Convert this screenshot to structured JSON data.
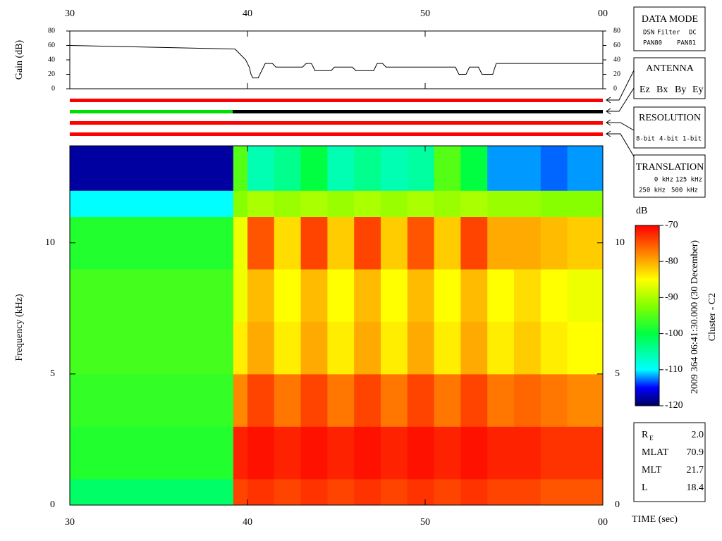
{
  "chart_data": [
    {
      "type": "line",
      "y_label": "Gain (dB)",
      "color": "#000000",
      "x": [
        30,
        39.3,
        39.5,
        39.7,
        39.9,
        40.1,
        40.2,
        40.3,
        40.6,
        40.8,
        41.0,
        41.4,
        41.6,
        43.1,
        43.3,
        43.6,
        43.8,
        44.7,
        44.9,
        45.9,
        46.1,
        47.1,
        47.3,
        47.6,
        47.8,
        51.7,
        51.9,
        52.3,
        52.5,
        53.0,
        53.2,
        53.8,
        54.0,
        60
      ],
      "values": [
        60,
        55,
        50,
        45,
        40,
        30,
        20,
        15,
        15,
        25,
        35,
        35,
        30,
        30,
        35,
        35,
        25,
        25,
        30,
        30,
        25,
        25,
        35,
        35,
        30,
        30,
        20,
        20,
        30,
        30,
        20,
        20,
        35,
        35
      ],
      "xlim": [
        30,
        60
      ],
      "ylim": [
        0,
        80
      ],
      "yticks": [
        0,
        20,
        40,
        60,
        80
      ]
    },
    {
      "type": "heatmap",
      "y_label": "Frequency (kHz)",
      "x_label": "TIME (sec)",
      "colormap": "jet",
      "x_edges": [
        30,
        35,
        39.2,
        40,
        41.5,
        43,
        44.5,
        46,
        47.5,
        49,
        50.5,
        52,
        53.5,
        55,
        56.5,
        58,
        60
      ],
      "y_edges": [
        0,
        1,
        3,
        5,
        7,
        9,
        11,
        12,
        13.7
      ],
      "values": [
        [
          -102,
          -102,
          -74,
          -73,
          -74,
          -73,
          -74,
          -73,
          -74,
          -73,
          -74,
          -73,
          -74,
          -74,
          -75,
          -75
        ],
        [
          -98,
          -98,
          -72,
          -71,
          -72,
          -71,
          -72,
          -71,
          -72,
          -71,
          -72,
          -71,
          -72,
          -72,
          -73,
          -73
        ],
        [
          -97,
          -97,
          -78,
          -74,
          -77,
          -74,
          -77,
          -74,
          -77,
          -74,
          -77,
          -74,
          -77,
          -76,
          -77,
          -78
        ],
        [
          -96,
          -96,
          -84,
          -80,
          -84,
          -80,
          -84,
          -80,
          -84,
          -80,
          -84,
          -80,
          -84,
          -82,
          -84,
          -85
        ],
        [
          -96,
          -96,
          -86,
          -81,
          -85,
          -81,
          -85,
          -81,
          -85,
          -81,
          -85,
          -81,
          -85,
          -83,
          -85,
          -86
        ],
        [
          -98,
          -98,
          -86,
          -75,
          -83,
          -74,
          -82,
          -74,
          -82,
          -75,
          -82,
          -74,
          -80,
          -80,
          -81,
          -82
        ],
        [
          -110,
          -110,
          -92,
          -90,
          -91,
          -90,
          -91,
          -90,
          -91,
          -90,
          -91,
          -90,
          -91,
          -91,
          -92,
          -92
        ],
        [
          -118,
          -118,
          -95,
          -106,
          -104,
          -100,
          -106,
          -104,
          -106,
          -105,
          -95,
          -100,
          -112,
          -112,
          -113,
          -112
        ]
      ],
      "xlim": [
        30,
        60
      ],
      "xticks": [
        30,
        40,
        50,
        {
          "value": 60,
          "label": "00"
        }
      ],
      "ylim": [
        0,
        13.7
      ],
      "yticks": [
        0,
        5,
        10
      ],
      "colorbar": {
        "title": "dB",
        "lim": [
          -120,
          -70
        ],
        "ticks": [
          -70,
          -80,
          -90,
          -100,
          -110,
          -120
        ]
      }
    }
  ],
  "data_mode": {
    "title": "DATA MODE",
    "items": [
      {
        "text": "DSN",
        "color": "#ff0000"
      },
      {
        "text": "Filter",
        "color": "#00c000"
      },
      {
        "text": "DC",
        "color": "#0000ff"
      },
      {
        "text": "PAN80",
        "color": "#000000"
      },
      {
        "text": "PAN81",
        "color": "#00c8c8"
      }
    ]
  },
  "antenna": {
    "title": "ANTENNA",
    "items": [
      {
        "text": "Ez",
        "color": "#ff0000"
      },
      {
        "text": "Bx",
        "color": "#00c000"
      },
      {
        "text": "By",
        "color": "#0000ff"
      },
      {
        "text": "Ey",
        "color": "#000000"
      }
    ]
  },
  "resolution": {
    "title": "RESOLUTION",
    "items": [
      {
        "text": "8-bit",
        "color": "#ff0000"
      },
      {
        "text": "4-bit",
        "color": "#00c000"
      },
      {
        "text": "1-bit",
        "color": "#0000ff"
      }
    ]
  },
  "translation": {
    "title": "TRANSLATION",
    "items": [
      {
        "text": "0 kHz",
        "color": "#ff0000"
      },
      {
        "text": "125 kHz",
        "color": "#00c000"
      },
      {
        "text": "250 kHz",
        "color": "#0000ff"
      },
      {
        "text": "500 kHz",
        "color": "#000000"
      }
    ]
  },
  "timestamp": "2009 364 06:41:30.000 (30 December)",
  "spacecraft": "Cluster - C2",
  "ephemeris": [
    {
      "label": "R",
      "sub": "E",
      "value": "2.0"
    },
    {
      "label": "MLAT",
      "value": "70.9"
    },
    {
      "label": "MLT",
      "value": "21.7"
    },
    {
      "label": "L",
      "value": "18.4"
    }
  ]
}
